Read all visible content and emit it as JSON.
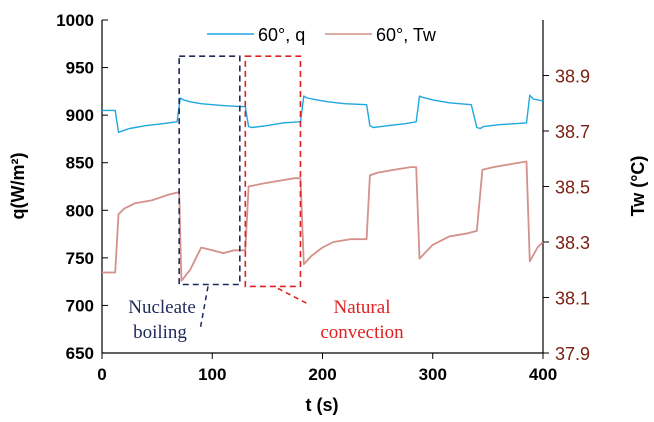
{
  "chart_data": {
    "type": "line",
    "xlabel": "t (s)",
    "ylabel_left": "q(W/m²)",
    "ylabel_right": "Tw (°C)",
    "xlim": [
      0,
      400
    ],
    "ylim_left": [
      650,
      1000
    ],
    "ylim_right": [
      37.9,
      39.1
    ],
    "x_ticks": [
      0,
      100,
      200,
      300,
      400
    ],
    "y_left_ticks": [
      650,
      700,
      750,
      800,
      850,
      900,
      950,
      1000
    ],
    "y_right_ticks": [
      37.9,
      38.1,
      38.3,
      38.5,
      38.7,
      38.9
    ],
    "grid": false,
    "legend_position": "top-center",
    "colors": {
      "q": "#1fa8e0",
      "tw": "#d4908a",
      "right_axis": "#7a1e12",
      "nucleate_box": "#1f2a5a",
      "natural_box": "#e02020"
    },
    "series": [
      {
        "name": "60°, q",
        "axis": "left",
        "x": [
          0,
          12,
          15,
          25,
          40,
          55,
          68,
          71,
          74,
          80,
          90,
          100,
          110,
          125,
          130,
          133,
          136,
          150,
          165,
          180,
          183,
          186,
          195,
          205,
          220,
          240,
          243,
          246,
          260,
          275,
          285,
          288,
          290,
          300,
          315,
          335,
          340,
          343,
          346,
          360,
          375,
          385,
          388,
          391,
          400
        ],
        "y": [
          905,
          905,
          882,
          886,
          889,
          891,
          893,
          918,
          916,
          914,
          912,
          911,
          910,
          909,
          909,
          888,
          887,
          889,
          892,
          893,
          920,
          918,
          916,
          914,
          912,
          911,
          889,
          887,
          889,
          891,
          893,
          920,
          919,
          916,
          913,
          911,
          887,
          886,
          888,
          890,
          891,
          892,
          921,
          917,
          915
        ]
      },
      {
        "name": "60°, Tw",
        "axis": "right",
        "x": [
          0,
          12,
          15,
          20,
          30,
          45,
          60,
          70,
          72,
          80,
          90,
          100,
          110,
          120,
          125,
          130,
          133,
          145,
          160,
          175,
          180,
          183,
          190,
          200,
          210,
          225,
          240,
          243,
          250,
          265,
          280,
          285,
          288,
          300,
          315,
          330,
          340,
          345,
          355,
          370,
          385,
          388,
          395,
          400
        ],
        "y": [
          38.19,
          38.19,
          38.4,
          38.42,
          38.44,
          38.45,
          38.47,
          38.48,
          38.16,
          38.2,
          38.28,
          38.27,
          38.26,
          38.27,
          38.27,
          38.27,
          38.5,
          38.51,
          38.52,
          38.53,
          38.53,
          38.22,
          38.25,
          38.28,
          38.3,
          38.31,
          38.31,
          38.54,
          38.55,
          38.56,
          38.57,
          38.57,
          38.24,
          38.29,
          38.32,
          38.33,
          38.34,
          38.56,
          38.57,
          38.58,
          38.59,
          38.23,
          38.28,
          38.3
        ]
      }
    ],
    "annotations": [
      {
        "text_line1": "Nucleate",
        "text_line2": "boiling",
        "region_x": [
          70,
          125
        ],
        "region_y": [
          722,
          962
        ],
        "style": "dashed",
        "color": "#1f2a5a"
      },
      {
        "text_line1": "Natural",
        "text_line2": "convection",
        "region_x": [
          130,
          180
        ],
        "region_y": [
          720,
          962
        ],
        "style": "dashed",
        "color": "#e02020"
      }
    ]
  }
}
